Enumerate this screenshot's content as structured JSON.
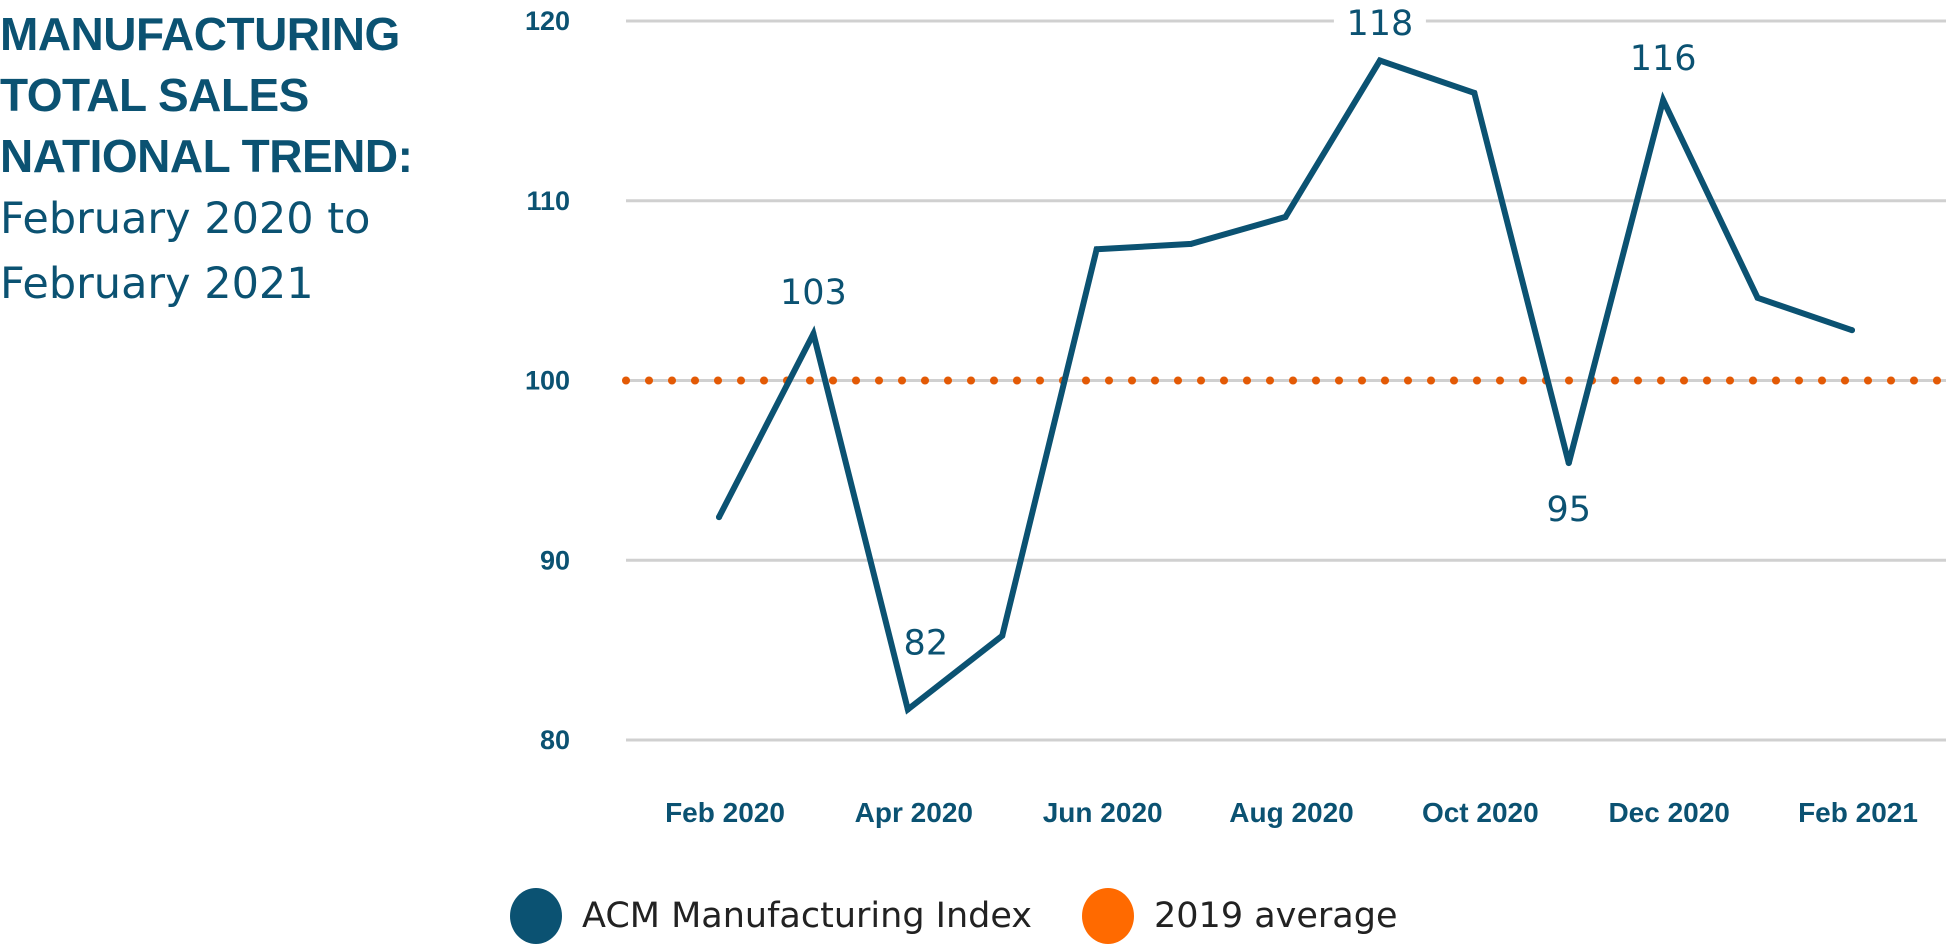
{
  "title": {
    "lines": [
      "MANUFACTURING",
      "TOTAL SALES",
      "NATIONAL TREND:"
    ],
    "subtitle_lines": [
      "February 2020 to",
      "February 2021"
    ]
  },
  "colors": {
    "series": "#0B5272",
    "reference": "#E35A05",
    "reference_legend": "#FF6A00",
    "grid": "#D0D0D0",
    "text": "#0B5272"
  },
  "legend": {
    "items": [
      {
        "label": "ACM Manufacturing Index",
        "color": "#0B5272"
      },
      {
        "label": "2019 average",
        "color": "#FF6A00"
      }
    ]
  },
  "chart_data": {
    "type": "line",
    "title": "MANUFACTURING TOTAL SALES NATIONAL TREND: February 2020 to February 2021",
    "xlabel": "",
    "ylabel": "",
    "ylim": [
      80,
      120
    ],
    "yticks": [
      120,
      110,
      100,
      90,
      80
    ],
    "grid": true,
    "legend_position": "bottom",
    "x": [
      "Feb 2020",
      "Mar 2020",
      "Apr 2020",
      "May 2020",
      "Jun 2020",
      "Jul 2020",
      "Aug 2020",
      "Sep 2020",
      "Oct 2020",
      "Nov 2020",
      "Dec 2020",
      "Jan 2021",
      "Feb 2021"
    ],
    "xtick_labels": [
      "Feb 2020",
      "Apr 2020",
      "Jun 2020",
      "Aug 2020",
      "Oct 2020",
      "Dec 2020",
      "Feb 2021"
    ],
    "series": [
      {
        "name": "ACM Manufacturing Index",
        "values": [
          92.4,
          102.6,
          81.7,
          85.8,
          107.3,
          107.6,
          109.1,
          117.8,
          116.0,
          95.4,
          115.6,
          104.6,
          102.8
        ]
      },
      {
        "name": "2019 average",
        "style": "dotted",
        "values": [
          100,
          100,
          100,
          100,
          100,
          100,
          100,
          100,
          100,
          100,
          100,
          100,
          100
        ]
      }
    ],
    "annotations": [
      {
        "x": "Mar 2020",
        "text": "103",
        "position": "above"
      },
      {
        "x": "Apr 2020",
        "text": "82",
        "position": "above-right"
      },
      {
        "x": "Sep 2020",
        "text": "118",
        "position": "above"
      },
      {
        "x": "Nov 2020",
        "text": "95",
        "position": "below"
      },
      {
        "x": "Dec 2020",
        "text": "116",
        "position": "above"
      }
    ]
  }
}
